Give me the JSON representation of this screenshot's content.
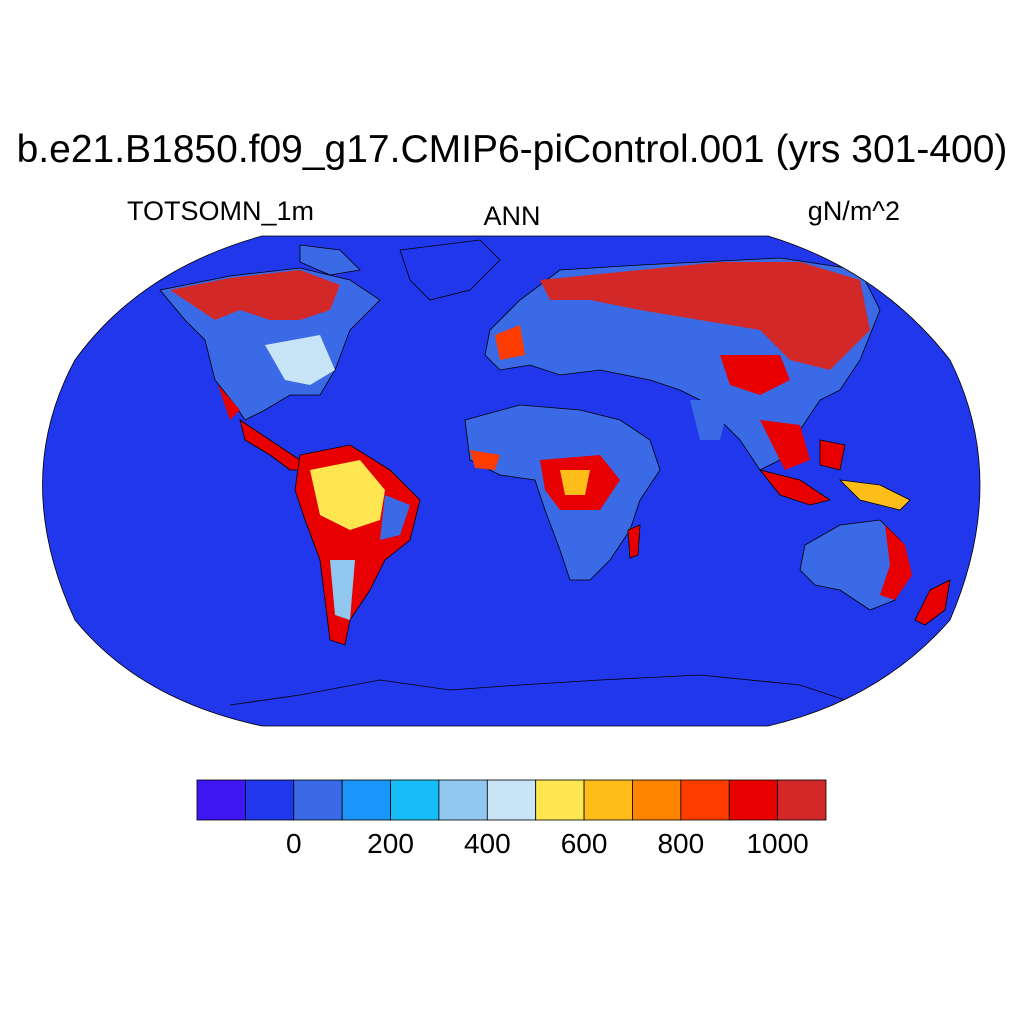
{
  "header": {
    "title": "b.e21.B1850.f09_g17.CMIP6-piControl.001 (yrs 301-400)",
    "left_label": "TOTSOMN_1m",
    "center_label": "ANN",
    "right_label": "gN/m^2"
  },
  "map": {
    "projection": "Robinson",
    "ocean_color": "#2137eb",
    "coastline_color": "#000000"
  },
  "colorbar": {
    "colors": [
      "#3f17f2",
      "#2137eb",
      "#3a6ae6",
      "#1a95fa",
      "#16bdf7",
      "#91c8f0",
      "#c8e4f7",
      "#fde64f",
      "#ffbd1a",
      "#ff8400",
      "#ff3c00",
      "#e80000",
      "#d22828"
    ],
    "tick_labels": [
      "0",
      "200",
      "400",
      "600",
      "800",
      "1000"
    ]
  }
}
